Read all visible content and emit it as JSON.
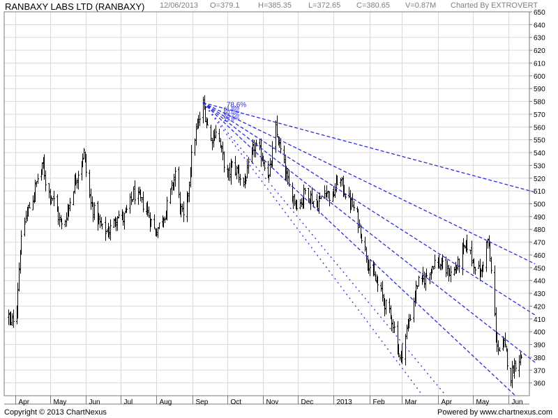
{
  "header": {
    "title": "RANBAXY LABS LTD (RANBAXY)",
    "date": "12/06/2013",
    "open": "O=379.1",
    "high": "H=385.35",
    "low": "L=372.65",
    "close": "C=380.65",
    "volume": "V=0.87M",
    "charted_by": "Charted By EXTROVERT"
  },
  "footer": {
    "copyright": "Copyright © 2013 ChartNexus",
    "powered_by": "Powered by www.chartnexus.com"
  },
  "colors": {
    "bars": "#000000",
    "fan_lines": "#2a2ae0",
    "grid": "#d9d9d9",
    "axis_text": "#000000"
  },
  "chart_data": {
    "type": "ohlc",
    "ylim": [
      350,
      650
    ],
    "yticks": [
      360,
      370,
      380,
      390,
      400,
      410,
      420,
      430,
      440,
      450,
      460,
      470,
      480,
      490,
      500,
      510,
      520,
      530,
      540,
      550,
      560,
      570,
      580,
      590,
      600,
      610,
      620,
      630,
      640,
      650
    ],
    "x_tick_labels": [
      "Apr",
      "May",
      "Jun",
      "Jul",
      "Aug",
      "Sep",
      "Oct",
      "Nov",
      "Dec",
      "2013",
      "Feb",
      "Mar",
      "Apr",
      "May",
      "Jun"
    ],
    "grid": true,
    "price_path": [
      [
        "2012-03-26",
        412
      ],
      [
        "2012-03-28",
        405
      ],
      [
        "2012-04-02",
        420
      ],
      [
        "2012-04-05",
        465
      ],
      [
        "2012-04-10",
        490
      ],
      [
        "2012-04-16",
        505
      ],
      [
        "2012-04-20",
        520
      ],
      [
        "2012-04-25",
        530
      ],
      [
        "2012-04-28",
        512
      ],
      [
        "2012-05-03",
        505
      ],
      [
        "2012-05-08",
        490
      ],
      [
        "2012-05-12",
        480
      ],
      [
        "2012-05-16",
        495
      ],
      [
        "2012-05-20",
        510
      ],
      [
        "2012-05-26",
        528
      ],
      [
        "2012-05-30",
        540
      ],
      [
        "2012-06-01",
        525
      ],
      [
        "2012-06-05",
        500
      ],
      [
        "2012-06-10",
        490
      ],
      [
        "2012-06-15",
        480
      ],
      [
        "2012-06-20",
        478
      ],
      [
        "2012-06-25",
        485
      ],
      [
        "2012-06-28",
        492
      ],
      [
        "2012-07-03",
        488
      ],
      [
        "2012-07-08",
        498
      ],
      [
        "2012-07-12",
        508
      ],
      [
        "2012-07-18",
        502
      ],
      [
        "2012-07-23",
        496
      ],
      [
        "2012-07-26",
        488
      ],
      [
        "2012-07-31",
        478
      ],
      [
        "2012-08-04",
        485
      ],
      [
        "2012-08-09",
        495
      ],
      [
        "2012-08-14",
        512
      ],
      [
        "2012-08-17",
        525
      ],
      [
        "2012-08-21",
        498
      ],
      [
        "2012-08-25",
        485
      ],
      [
        "2012-08-28",
        510
      ],
      [
        "2012-09-01",
        545
      ],
      [
        "2012-09-05",
        560
      ],
      [
        "2012-09-08",
        570
      ],
      [
        "2012-09-10",
        578
      ],
      [
        "2012-09-13",
        565
      ],
      [
        "2012-09-17",
        550
      ],
      [
        "2012-09-22",
        560
      ],
      [
        "2012-09-26",
        540
      ],
      [
        "2012-10-01",
        520
      ],
      [
        "2012-10-05",
        530
      ],
      [
        "2012-10-10",
        525
      ],
      [
        "2012-10-15",
        515
      ],
      [
        "2012-10-19",
        528
      ],
      [
        "2012-10-24",
        545
      ],
      [
        "2012-10-29",
        540
      ],
      [
        "2012-11-03",
        530
      ],
      [
        "2012-11-06",
        520
      ],
      [
        "2012-11-09",
        540
      ],
      [
        "2012-11-12",
        558
      ],
      [
        "2012-11-15",
        545
      ],
      [
        "2012-11-19",
        530
      ],
      [
        "2012-11-23",
        512
      ],
      [
        "2012-11-27",
        505
      ],
      [
        "2012-12-02",
        498
      ],
      [
        "2012-12-07",
        510
      ],
      [
        "2012-12-12",
        505
      ],
      [
        "2012-12-17",
        498
      ],
      [
        "2012-12-21",
        505
      ],
      [
        "2012-12-25",
        512
      ],
      [
        "2012-12-30",
        502
      ],
      [
        "2013-01-03",
        515
      ],
      [
        "2013-01-05",
        522
      ],
      [
        "2013-01-09",
        512
      ],
      [
        "2013-01-13",
        505
      ],
      [
        "2013-01-17",
        498
      ],
      [
        "2013-01-21",
        490
      ],
      [
        "2013-01-25",
        475
      ],
      [
        "2013-01-29",
        460
      ],
      [
        "2013-02-02",
        448
      ],
      [
        "2013-02-06",
        440
      ],
      [
        "2013-02-10",
        432
      ],
      [
        "2013-02-15",
        420
      ],
      [
        "2013-02-20",
        410
      ],
      [
        "2013-02-24",
        395
      ],
      [
        "2013-02-27",
        378
      ],
      [
        "2013-03-02",
        388
      ],
      [
        "2013-03-06",
        405
      ],
      [
        "2013-03-10",
        420
      ],
      [
        "2013-03-14",
        438
      ],
      [
        "2013-03-19",
        440
      ],
      [
        "2013-03-24",
        447
      ],
      [
        "2013-03-29",
        455
      ],
      [
        "2013-04-03",
        452
      ],
      [
        "2013-04-08",
        448
      ],
      [
        "2013-04-13",
        445
      ],
      [
        "2013-04-18",
        452
      ],
      [
        "2013-04-22",
        462
      ],
      [
        "2013-04-26",
        468
      ],
      [
        "2013-04-30",
        458
      ],
      [
        "2013-05-04",
        450
      ],
      [
        "2013-05-08",
        445
      ],
      [
        "2013-05-11",
        460
      ],
      [
        "2013-05-14",
        472
      ],
      [
        "2013-05-16",
        455
      ],
      [
        "2013-05-19",
        430
      ],
      [
        "2013-05-21",
        395
      ],
      [
        "2013-05-24",
        385
      ],
      [
        "2013-05-28",
        390
      ],
      [
        "2013-05-31",
        378
      ],
      [
        "2013-06-03",
        365
      ],
      [
        "2013-06-05",
        372
      ],
      [
        "2013-06-08",
        378
      ],
      [
        "2013-06-12",
        380.65
      ]
    ],
    "fan": {
      "anchor": [
        "2012-09-10",
        579
      ],
      "line_label": "78.6%",
      "fan_labels_overlapping": [
        "61.8%",
        "50.0%",
        "38.2%",
        "23.6%"
      ],
      "lines": [
        [
          "2013-06-24",
          509
        ],
        [
          "2013-06-24",
          453
        ],
        [
          "2013-06-24",
          413
        ],
        [
          "2013-06-24",
          376
        ],
        [
          "2013-06-07",
          350
        ],
        [
          "2013-04-08",
          350
        ],
        [
          "2013-03-19",
          350
        ]
      ]
    }
  }
}
